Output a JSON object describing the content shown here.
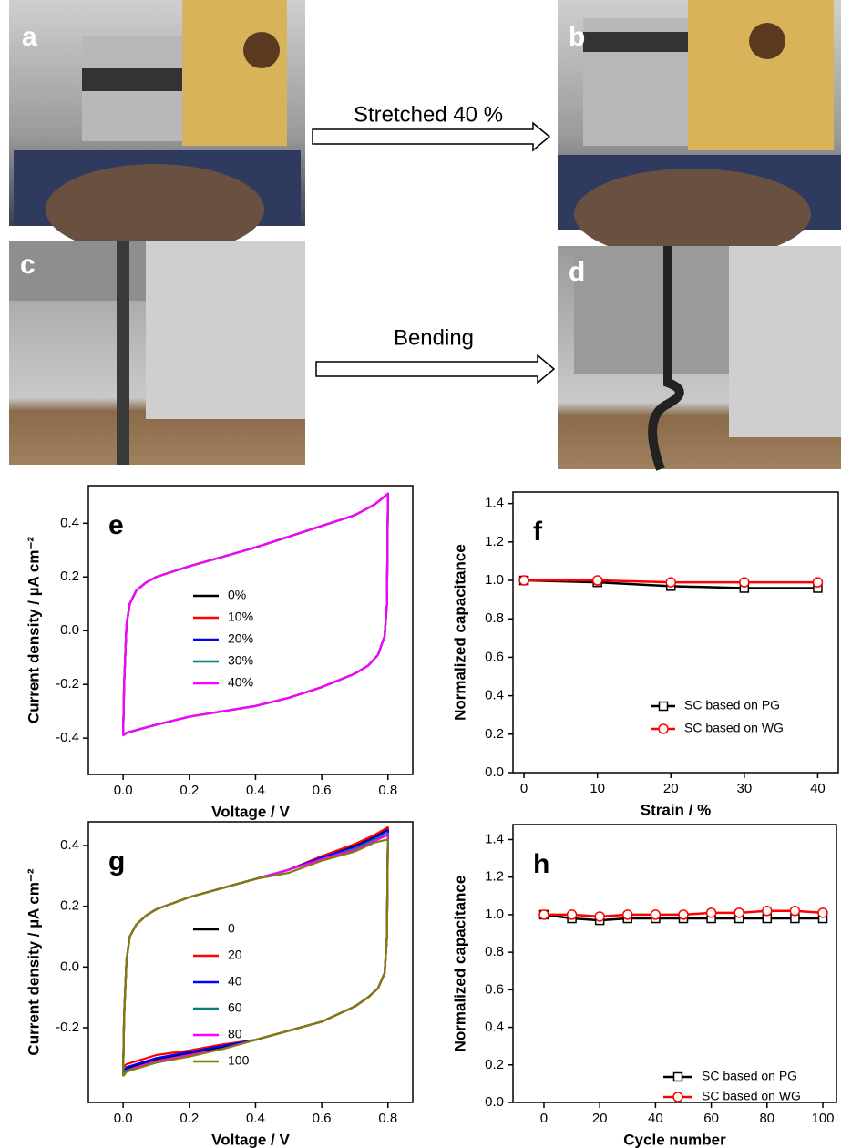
{
  "photos": [
    {
      "label": "a"
    },
    {
      "label": "b"
    },
    {
      "label": "c"
    },
    {
      "label": "d"
    }
  ],
  "arrows": [
    {
      "label": "Stretched 40 %"
    },
    {
      "label": "Bending"
    }
  ],
  "chart_data": [
    {
      "type": "line",
      "panel_label": "e",
      "xlabel": "Voltage / V",
      "ylabel": "Current density / µA cm⁻²",
      "x": [
        0,
        0.003,
        0.01,
        0.02,
        0.04,
        0.07,
        0.1,
        0.2,
        0.3,
        0.4,
        0.5,
        0.6,
        0.7,
        0.76,
        0.8,
        0.8,
        0.797,
        0.79,
        0.77,
        0.74,
        0.7,
        0.6,
        0.5,
        0.4,
        0.3,
        0.2,
        0.1,
        0.04,
        0.01,
        0
      ],
      "series": [
        {
          "name": "0%",
          "color": "#000000",
          "values": [
            -0.39,
            -0.2,
            0.02,
            0.1,
            0.15,
            0.18,
            0.2,
            0.24,
            0.275,
            0.31,
            0.35,
            0.39,
            0.43,
            0.47,
            0.51,
            0.51,
            0.1,
            -0.02,
            -0.09,
            -0.13,
            -0.16,
            -0.21,
            -0.25,
            -0.28,
            -0.3,
            -0.32,
            -0.35,
            -0.37,
            -0.38,
            -0.39
          ]
        },
        {
          "name": "10%",
          "color": "#ff0000",
          "values": [
            -0.39,
            -0.2,
            0.02,
            0.1,
            0.15,
            0.18,
            0.2,
            0.24,
            0.275,
            0.31,
            0.35,
            0.39,
            0.43,
            0.47,
            0.51,
            0.51,
            0.1,
            -0.02,
            -0.09,
            -0.13,
            -0.16,
            -0.21,
            -0.25,
            -0.28,
            -0.3,
            -0.32,
            -0.35,
            -0.37,
            -0.38,
            -0.39
          ]
        },
        {
          "name": "20%",
          "color": "#0000ff",
          "values": [
            -0.39,
            -0.2,
            0.02,
            0.1,
            0.15,
            0.18,
            0.2,
            0.24,
            0.275,
            0.31,
            0.35,
            0.39,
            0.43,
            0.47,
            0.51,
            0.51,
            0.1,
            -0.02,
            -0.09,
            -0.13,
            -0.16,
            -0.21,
            -0.25,
            -0.28,
            -0.3,
            -0.32,
            -0.35,
            -0.37,
            -0.38,
            -0.39
          ]
        },
        {
          "name": "30%",
          "color": "#008080",
          "values": [
            -0.39,
            -0.2,
            0.02,
            0.1,
            0.15,
            0.18,
            0.2,
            0.24,
            0.275,
            0.31,
            0.35,
            0.39,
            0.43,
            0.47,
            0.51,
            0.51,
            0.1,
            -0.02,
            -0.09,
            -0.13,
            -0.16,
            -0.21,
            -0.25,
            -0.28,
            -0.3,
            -0.32,
            -0.35,
            -0.37,
            -0.38,
            -0.39
          ]
        },
        {
          "name": "40%",
          "color": "#ff00ff",
          "values": [
            -0.39,
            -0.2,
            0.02,
            0.1,
            0.15,
            0.18,
            0.2,
            0.24,
            0.275,
            0.31,
            0.35,
            0.39,
            0.43,
            0.47,
            0.51,
            0.51,
            0.1,
            -0.02,
            -0.09,
            -0.13,
            -0.16,
            -0.21,
            -0.25,
            -0.28,
            -0.3,
            -0.32,
            -0.35,
            -0.37,
            -0.38,
            -0.39
          ]
        }
      ],
      "xlim": [
        -0.105,
        0.875
      ],
      "ylim": [
        -0.535,
        0.54
      ],
      "xticks": [
        {
          "value": 0,
          "label": "0.0"
        },
        0.2,
        0.4,
        0.6,
        0.8
      ],
      "yticks": [
        -0.4,
        -0.2,
        {
          "value": 0,
          "label": "0.0"
        },
        0.2,
        0.4
      ]
    },
    {
      "type": "line",
      "panel_label": "f",
      "xlabel": "Strain / %",
      "ylabel": "Normalized capacitance",
      "x": [
        0,
        10,
        20,
        30,
        40
      ],
      "series": [
        {
          "name": "SC based on PG",
          "color": "#000000",
          "marker": "square",
          "values": [
            1.0,
            0.99,
            0.97,
            0.96,
            0.96
          ]
        },
        {
          "name": "SC based on WG",
          "color": "#ff0000",
          "marker": "circle",
          "values": [
            1.0,
            1.0,
            0.99,
            0.99,
            0.99
          ]
        }
      ],
      "xlim": [
        -1.5,
        42.8
      ],
      "ylim": [
        0,
        1.46
      ],
      "xticks": [
        0,
        10,
        20,
        30,
        40
      ],
      "yticks": [
        {
          "value": 0,
          "label": "0.0"
        },
        0.2,
        0.4,
        0.6,
        0.8,
        {
          "value": 1,
          "label": "1.0"
        },
        1.2,
        1.4
      ]
    },
    {
      "type": "line",
      "panel_label": "g",
      "xlabel": "Voltage / V",
      "ylabel": "Current density / µA cm⁻²",
      "x": [
        0,
        0.003,
        0.01,
        0.02,
        0.04,
        0.07,
        0.1,
        0.2,
        0.3,
        0.4,
        0.5,
        0.6,
        0.7,
        0.76,
        0.8,
        0.8,
        0.797,
        0.79,
        0.77,
        0.74,
        0.7,
        0.6,
        0.5,
        0.4,
        0.3,
        0.2,
        0.1,
        0.04,
        0.01,
        0
      ],
      "series": [
        {
          "name": "0",
          "color": "#000000",
          "values": [
            -0.35,
            -0.16,
            0.02,
            0.1,
            0.14,
            0.17,
            0.19,
            0.23,
            0.26,
            0.29,
            0.32,
            0.36,
            0.4,
            0.43,
            0.455,
            0.455,
            0.1,
            -0.02,
            -0.07,
            -0.1,
            -0.13,
            -0.18,
            -0.21,
            -0.24,
            -0.265,
            -0.285,
            -0.305,
            -0.325,
            -0.335,
            -0.35
          ]
        },
        {
          "name": "20",
          "color": "#ff0000",
          "values": [
            -0.33,
            -0.15,
            0.02,
            0.1,
            0.14,
            0.17,
            0.19,
            0.23,
            0.26,
            0.29,
            0.32,
            0.365,
            0.405,
            0.435,
            0.46,
            0.46,
            0.1,
            -0.02,
            -0.07,
            -0.1,
            -0.13,
            -0.18,
            -0.21,
            -0.24,
            -0.255,
            -0.275,
            -0.29,
            -0.31,
            -0.32,
            -0.33
          ]
        },
        {
          "name": "40",
          "color": "#0000ff",
          "values": [
            -0.345,
            -0.16,
            0.02,
            0.1,
            0.14,
            0.17,
            0.19,
            0.23,
            0.26,
            0.29,
            0.32,
            0.36,
            0.395,
            0.425,
            0.45,
            0.45,
            0.1,
            -0.02,
            -0.07,
            -0.1,
            -0.13,
            -0.18,
            -0.21,
            -0.24,
            -0.26,
            -0.28,
            -0.3,
            -0.32,
            -0.33,
            -0.345
          ]
        },
        {
          "name": "60",
          "color": "#008080",
          "values": [
            -0.35,
            -0.16,
            0.02,
            0.1,
            0.14,
            0.17,
            0.19,
            0.23,
            0.26,
            0.29,
            0.32,
            0.355,
            0.39,
            0.42,
            0.44,
            0.44,
            0.1,
            -0.02,
            -0.07,
            -0.1,
            -0.13,
            -0.18,
            -0.21,
            -0.24,
            -0.27,
            -0.29,
            -0.31,
            -0.33,
            -0.34,
            -0.35
          ]
        },
        {
          "name": "80",
          "color": "#ff00ff",
          "values": [
            -0.355,
            -0.16,
            0.02,
            0.1,
            0.14,
            0.17,
            0.19,
            0.23,
            0.26,
            0.29,
            0.32,
            0.355,
            0.385,
            0.415,
            0.435,
            0.435,
            0.1,
            -0.02,
            -0.07,
            -0.1,
            -0.13,
            -0.18,
            -0.21,
            -0.24,
            -0.27,
            -0.29,
            -0.31,
            -0.33,
            -0.345,
            -0.355
          ]
        },
        {
          "name": "100",
          "color": "#808000",
          "values": [
            -0.36,
            -0.17,
            0.02,
            0.1,
            0.14,
            0.17,
            0.19,
            0.23,
            0.26,
            0.29,
            0.31,
            0.35,
            0.38,
            0.41,
            0.42,
            0.42,
            0.1,
            -0.02,
            -0.07,
            -0.1,
            -0.13,
            -0.18,
            -0.21,
            -0.24,
            -0.27,
            -0.295,
            -0.315,
            -0.335,
            -0.345,
            -0.36
          ]
        }
      ],
      "xlim": [
        -0.105,
        0.875
      ],
      "ylim": [
        -0.446,
        0.478
      ],
      "xticks": [
        {
          "value": 0,
          "label": "0.0"
        },
        0.2,
        0.4,
        0.6,
        0.8
      ],
      "yticks": [
        -0.2,
        {
          "value": 0,
          "label": "0.0"
        },
        0.2,
        0.4
      ]
    },
    {
      "type": "line",
      "panel_label": "h",
      "xlabel": "Cycle number",
      "ylabel": "Normalized capacitance",
      "x": [
        0,
        10,
        20,
        30,
        40,
        50,
        60,
        70,
        80,
        90,
        100
      ],
      "series": [
        {
          "name": "SC based on PG",
          "color": "#000000",
          "marker": "square",
          "values": [
            1.0,
            0.98,
            0.97,
            0.98,
            0.98,
            0.98,
            0.98,
            0.98,
            0.98,
            0.98,
            0.98
          ]
        },
        {
          "name": "SC based on WG",
          "color": "#ff0000",
          "marker": "circle",
          "values": [
            1.0,
            1.0,
            0.99,
            1.0,
            1.0,
            1.0,
            1.01,
            1.01,
            1.02,
            1.02,
            1.01
          ]
        }
      ],
      "xlim": [
        -11.1,
        104.9
      ],
      "ylim": [
        0,
        1.48
      ],
      "xticks": [
        0,
        20,
        40,
        60,
        80,
        100
      ],
      "yticks": [
        {
          "value": 0,
          "label": "0.0"
        },
        0.2,
        0.4,
        0.6,
        0.8,
        {
          "value": 1,
          "label": "1.0"
        },
        1.2,
        1.4
      ]
    }
  ]
}
